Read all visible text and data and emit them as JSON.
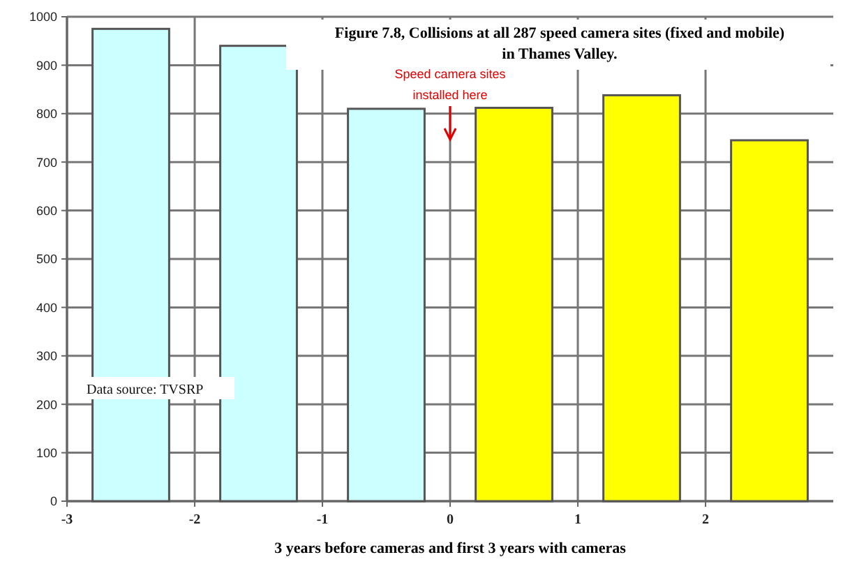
{
  "chart_data": {
    "type": "bar",
    "title": "Figure 7.8, Collisions at all 287 speed camera sites (fixed and mobile) in Thames Valley.",
    "xlabel": "3 years before cameras and first 3 years with cameras",
    "x": [
      -2.5,
      -1.5,
      -0.5,
      0.5,
      1.5,
      2.5
    ],
    "values": [
      975,
      940,
      810,
      812,
      838,
      745
    ],
    "colors": [
      "#ccffff",
      "#ccffff",
      "#ccffff",
      "#ffff00",
      "#ffff00",
      "#ffff00"
    ],
    "xlim": [
      -3,
      3
    ],
    "xticks": [
      -3,
      -2,
      -1,
      0,
      1,
      2
    ],
    "ylim": [
      0,
      1000
    ],
    "yticks": [
      0,
      100,
      200,
      300,
      400,
      500,
      600,
      700,
      800,
      900,
      1000
    ],
    "grid": true,
    "annotations": [
      "Speed camera sites installed here",
      "Data source:  TVSRP"
    ]
  }
}
